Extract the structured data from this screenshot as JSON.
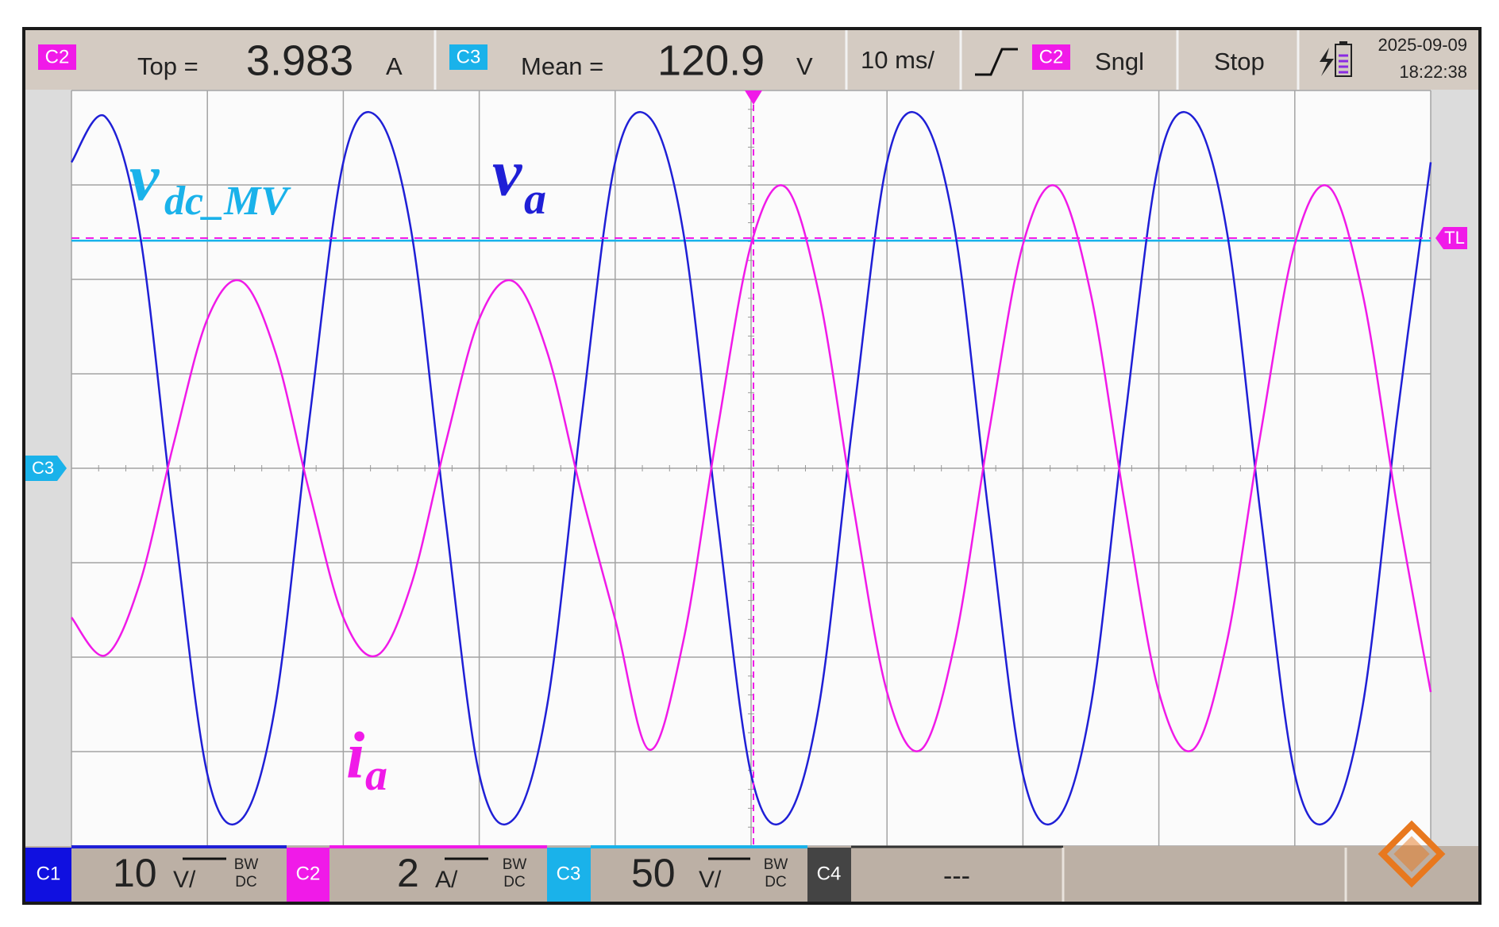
{
  "header": {
    "c2_badge": "C2",
    "top_label": "Top =",
    "top_value": 3.983,
    "top_unit": "A",
    "c3_badge": "C3",
    "mean_label": "Mean =",
    "mean_value": 120.9,
    "mean_unit": "V",
    "timebase": "10 ms/",
    "trigger_source": "C2",
    "mode": "Sngl",
    "state": "Stop",
    "date": "2025-09-09",
    "time": "18:22:38"
  },
  "footer": {
    "channels": [
      {
        "name": "C1",
        "scale": 10,
        "unit": "V/",
        "bw": "BW",
        "coupling": "DC"
      },
      {
        "name": "C2",
        "scale": 2,
        "unit": "A/",
        "bw": "BW",
        "coupling": "DC"
      },
      {
        "name": "C3",
        "scale": 50,
        "unit": "V/",
        "bw": "BW",
        "coupling": "DC"
      },
      {
        "name": "C4",
        "scale": "---"
      }
    ]
  },
  "markers": {
    "offset": "C3",
    "trigger_level": "TL"
  },
  "chart_data": {
    "type": "line",
    "x": [
      0,
      0.25,
      0.5,
      0.75,
      1,
      1.25,
      1.5,
      1.75,
      2,
      2.25,
      2.5,
      2.75,
      3,
      3.25,
      3.5,
      3.75,
      4,
      4.25,
      4.5,
      4.75,
      5,
      5.25,
      5.5,
      5.75,
      6,
      6.25,
      6.5,
      6.75,
      7,
      7.25,
      7.5,
      7.75,
      8,
      8.25,
      8.5,
      8.75,
      9,
      9.25,
      9.5,
      9.75,
      10
    ],
    "series": [
      {
        "name": "v",
        "subscript": "dc_MV",
        "color": "#1ab2ea",
        "values": [
          2.41,
          2.41,
          2.41,
          2.41,
          2.41,
          2.41,
          2.41,
          2.41,
          2.41,
          2.41,
          2.41,
          2.41,
          2.41,
          2.41,
          2.41,
          2.41,
          2.41,
          2.41,
          2.41,
          2.41,
          2.41,
          2.41,
          2.41,
          2.41,
          2.41,
          2.41,
          2.41,
          2.41,
          2.41,
          2.41,
          2.41,
          2.41,
          2.41,
          2.41,
          2.41,
          2.41,
          2.41,
          2.41,
          2.41,
          2.41,
          2.41
        ]
      },
      {
        "name": "v",
        "subscript": "a",
        "color": "#1f1fd6",
        "values": [
          3.24,
          3.72,
          2.51,
          -0.51,
          -3.24,
          -3.72,
          -2.51,
          0.51,
          3.24,
          3.72,
          2.51,
          -0.51,
          -3.24,
          -3.72,
          -2.51,
          0.51,
          3.24,
          3.72,
          2.51,
          -0.51,
          -3.24,
          -3.72,
          -2.51,
          0.51,
          3.24,
          3.72,
          2.51,
          -0.51,
          -3.24,
          -3.72,
          -2.51,
          0.51,
          3.24,
          3.72,
          2.51,
          -0.51,
          -3.24,
          -3.72,
          -2.51,
          0.51,
          3.24
        ]
      },
      {
        "name": "i",
        "subscript": "a",
        "color": "#f01ae8",
        "values": [
          -1.58,
          -1.98,
          -1.23,
          0.25,
          1.58,
          1.98,
          1.23,
          -0.25,
          -1.58,
          -1.98,
          -1.23,
          0.25,
          1.58,
          1.98,
          1.23,
          -0.25,
          -1.6,
          -2.98,
          -1.84,
          0.38,
          2.37,
          2.98,
          1.84,
          -0.38,
          -2.37,
          -2.98,
          -1.84,
          0.38,
          2.37,
          2.98,
          1.84,
          -0.38,
          -2.37,
          -2.98,
          -1.84,
          0.38,
          2.37,
          2.98,
          1.84,
          -0.38,
          -2.37
        ]
      }
    ],
    "xlim": [
      0,
      10
    ],
    "ylim": [
      -4,
      4
    ],
    "xticks": [
      0,
      1,
      2,
      3,
      4,
      5,
      6,
      7,
      8,
      9,
      10
    ],
    "yticks": [
      -4,
      -3,
      -2,
      -1,
      0,
      1,
      2,
      3,
      4
    ],
    "grid": true
  }
}
